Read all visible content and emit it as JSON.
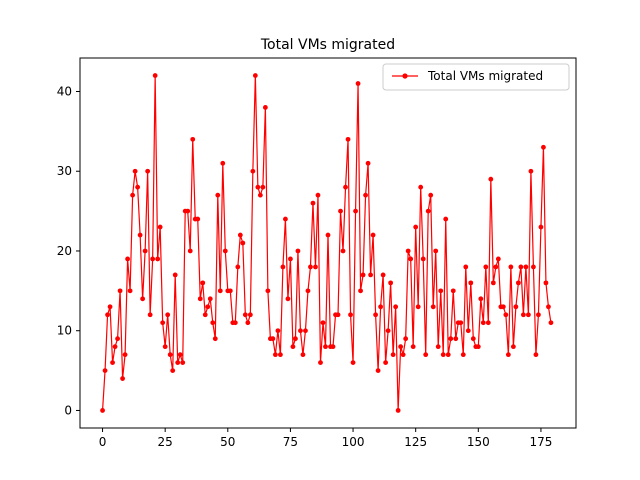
{
  "chart_data": {
    "type": "line",
    "title": "Total VMs migrated",
    "xlabel": "",
    "ylabel": "",
    "xlim": [
      -9,
      189
    ],
    "ylim": [
      -2.2,
      44.2
    ],
    "xticks": [
      0,
      25,
      50,
      75,
      100,
      125,
      150,
      175
    ],
    "yticks": [
      0,
      10,
      20,
      30,
      40
    ],
    "grid": false,
    "legend": "top-right",
    "series": [
      {
        "name": "Total VMs migrated",
        "color": "#ff0000",
        "marker": "circle",
        "x": [
          0,
          1,
          2,
          3,
          4,
          5,
          6,
          7,
          8,
          9,
          10,
          11,
          12,
          13,
          14,
          15,
          16,
          17,
          18,
          19,
          20,
          21,
          22,
          23,
          24,
          25,
          26,
          27,
          28,
          29,
          30,
          31,
          32,
          33,
          34,
          35,
          36,
          37,
          38,
          39,
          40,
          41,
          42,
          43,
          44,
          45,
          46,
          47,
          48,
          49,
          50,
          51,
          52,
          53,
          54,
          55,
          56,
          57,
          58,
          59,
          60,
          61,
          62,
          63,
          64,
          65,
          66,
          67,
          68,
          69,
          70,
          71,
          72,
          73,
          74,
          75,
          76,
          77,
          78,
          79,
          80,
          81,
          82,
          83,
          84,
          85,
          86,
          87,
          88,
          89,
          90,
          91,
          92,
          93,
          94,
          95,
          96,
          97,
          98,
          99,
          100,
          101,
          102,
          103,
          104,
          105,
          106,
          107,
          108,
          109,
          110,
          111,
          112,
          113,
          114,
          115,
          116,
          117,
          118,
          119,
          120,
          121,
          122,
          123,
          124,
          125,
          126,
          127,
          128,
          129,
          130,
          131,
          132,
          133,
          134,
          135,
          136,
          137,
          138,
          139,
          140,
          141,
          142,
          143,
          144,
          145,
          146,
          147,
          148,
          149,
          150,
          151,
          152,
          153,
          154,
          155,
          156,
          157,
          158,
          159,
          160,
          161,
          162,
          163,
          164,
          165,
          166,
          167,
          168,
          169,
          170,
          171,
          172,
          173,
          174,
          175,
          176,
          177,
          178,
          179
        ],
        "values": [
          0,
          5,
          12,
          13,
          6,
          8,
          9,
          15,
          4,
          7,
          19,
          15,
          27,
          30,
          28,
          22,
          14,
          20,
          30,
          12,
          19,
          42,
          19,
          23,
          11,
          8,
          12,
          7,
          5,
          17,
          6,
          7,
          6,
          25,
          25,
          20,
          34,
          24,
          24,
          14,
          16,
          12,
          13,
          14,
          11,
          9,
          27,
          15,
          31,
          20,
          15,
          15,
          11,
          11,
          18,
          22,
          21,
          12,
          11,
          12,
          30,
          42,
          28,
          27,
          28,
          38,
          15,
          9,
          9,
          7,
          10,
          7,
          18,
          24,
          14,
          19,
          8,
          9,
          20,
          10,
          7,
          10,
          15,
          18,
          26,
          18,
          27,
          6,
          11,
          8,
          22,
          8,
          8,
          12,
          12,
          25,
          20,
          28,
          34,
          12,
          6,
          25,
          41,
          15,
          17,
          27,
          31,
          17,
          22,
          12,
          5,
          13,
          17,
          6,
          10,
          16,
          7,
          13,
          0,
          8,
          7,
          9,
          20,
          19,
          8,
          23,
          13,
          28,
          19,
          7,
          25,
          27,
          13,
          20,
          8,
          15,
          7,
          24,
          7,
          9,
          15,
          9,
          11,
          11,
          7,
          18,
          10,
          16,
          9,
          8,
          8,
          14,
          11,
          18,
          11,
          29,
          16,
          18,
          19,
          13,
          13,
          12,
          7,
          18,
          8,
          13,
          16,
          18,
          12,
          18,
          12,
          30,
          18,
          7,
          12,
          23,
          33,
          16,
          13,
          11
        ]
      }
    ]
  }
}
